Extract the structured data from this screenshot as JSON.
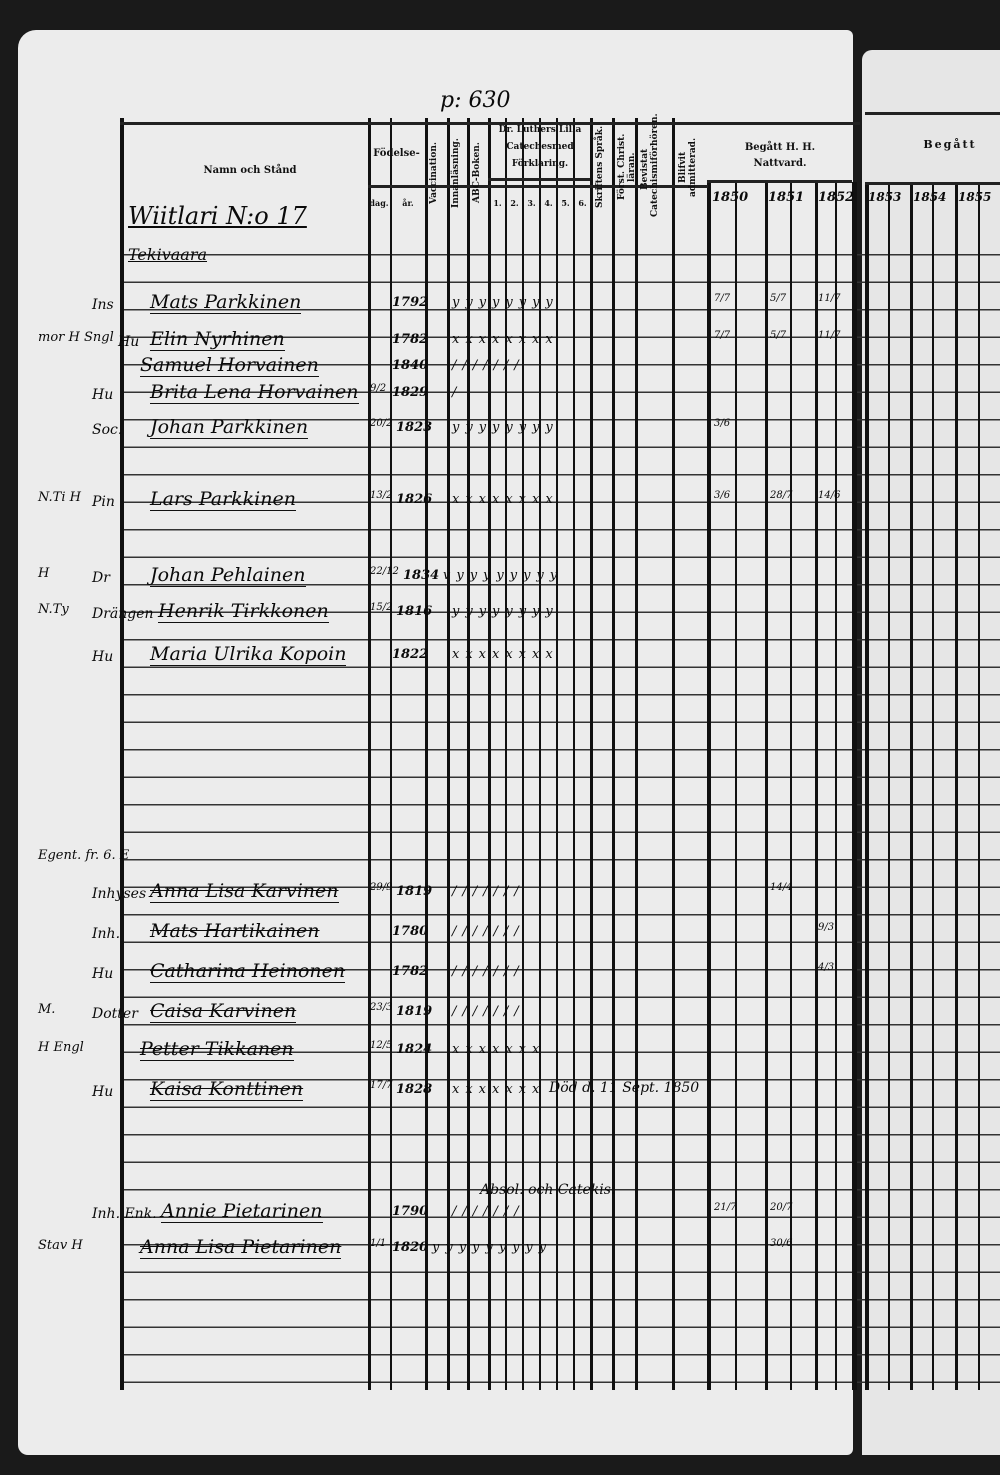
{
  "page_number": "p: 630",
  "header": {
    "name_col": "Namn och Stånd",
    "birth": "Födelse-",
    "birth_day": "dag.",
    "birth_year": "år.",
    "vaccination": "Vaccination.",
    "reading": "Innanläsning.",
    "abc": "ABC-Boken.",
    "catechism": "Dr. Luthers Lilla Catechesmed Förklaring.",
    "catechism_parts": [
      "1.",
      "2.",
      "3.",
      "4.",
      "5.",
      "6."
    ],
    "scripture": "Skriftens Språk.",
    "christ": "Först. Christ. läran.",
    "hearings": "Bevistat Catechismiförhören.",
    "admitted": "Blifvit admitterad.",
    "communion": "Begått H. H. Nattvard.",
    "years": [
      "1850",
      "1851",
      "1852"
    ],
    "right_communion": "Begått",
    "right_years": [
      "1853",
      "1854",
      "1855"
    ]
  },
  "household": {
    "title": "Wiitlari N:o 17",
    "subtitle": "Tekivaara"
  },
  "rows": [
    {
      "margin": "",
      "prefix": "Ins",
      "name": "Mats Parkkinen",
      "day": "",
      "year": "1792",
      "marks": "yyyyyyyy",
      "note": "",
      "c1850": "7/7",
      "c1851": "5/7",
      "c1852": "11/7"
    },
    {
      "margin": "mor H Sngl",
      "prefix": "Hu",
      "name": "Elin Nyrhinen",
      "day": "",
      "year": "1782",
      "marks": "xxxxxxxx",
      "note": "",
      "c1850": "7/7",
      "c1851": "5/7",
      "c1852": "11/7"
    },
    {
      "margin": "",
      "prefix": "",
      "name": "Samuel Horvainen",
      "day": "",
      "year": "1840",
      "marks": "///////",
      "note": "",
      "c1850": "",
      "c1851": "",
      "c1852": ""
    },
    {
      "margin": "",
      "prefix": "Hu",
      "name": "Brita Lena Horvainen",
      "day": "9/2",
      "year": "1829",
      "marks": "/",
      "note": "",
      "c1850": "",
      "c1851": "",
      "c1852": ""
    },
    {
      "margin": "",
      "prefix": "Soc.",
      "name": "Johan Parkkinen",
      "day": "20/2",
      "year": "1823",
      "marks": "yyyyyyyy",
      "note": "",
      "c1850": "3/6",
      "c1851": "",
      "c1852": ""
    },
    {
      "margin": "N.Ti H",
      "prefix": "Pin",
      "name": "Lars Parkkinen",
      "day": "13/2",
      "year": "1826",
      "marks": "xxxxxxxx",
      "note": "",
      "c1850": "3/6",
      "c1851": "28/7",
      "c1852": "14/6"
    },
    {
      "margin": "H",
      "prefix": "Dr",
      "name": "Johan Pehlainen",
      "day": "22/12",
      "year": "1834",
      "marks": "vyyyyyyyy",
      "note": "",
      "c1850": "",
      "c1851": "",
      "c1852": ""
    },
    {
      "margin": "N.Ty",
      "prefix": "Drängen",
      "name": "Henrik Tirkkonen",
      "day": "15/2",
      "year": "1816",
      "marks": "yyyyyyyy",
      "note": "",
      "c1850": "",
      "c1851": "",
      "c1852": ""
    },
    {
      "margin": "",
      "prefix": "Hu",
      "name": "Maria Ulrika Kopoin",
      "day": "",
      "year": "1822",
      "marks": "xxxxxxxx",
      "note": "",
      "c1850": "",
      "c1851": "",
      "c1852": ""
    },
    {
      "margin": "Egent. fr. 6. E",
      "prefix": "",
      "name": "",
      "day": "",
      "year": "",
      "marks": "",
      "note": "",
      "c1850": "",
      "c1851": "",
      "c1852": ""
    },
    {
      "margin": "",
      "prefix": "Inhyses",
      "name": "Anna Lisa Karvinen",
      "day": "29/9",
      "year": "1819",
      "marks": "///////",
      "note": "",
      "c1850": "",
      "c1851": "14/4",
      "c1852": ""
    },
    {
      "margin": "",
      "prefix": "Inh.",
      "name": "Mats Hartikainen",
      "day": "",
      "year": "1780",
      "marks": "///////",
      "note": "",
      "c1850": "",
      "c1851": "",
      "c1852": "9/3"
    },
    {
      "margin": "",
      "prefix": "Hu",
      "name": "Catharina Heinonen",
      "day": "",
      "year": "1782",
      "marks": "///////",
      "note": "",
      "c1850": "",
      "c1851": "",
      "c1852": "4/3"
    },
    {
      "margin": "M.",
      "prefix": "Dotter",
      "name": "Caisa Karvinen",
      "day": "23/3",
      "year": "1819",
      "marks": "///////",
      "note": "",
      "c1850": "",
      "c1851": "",
      "c1852": ""
    },
    {
      "margin": "H Engl",
      "prefix": "",
      "name": "Petter Tikkanen",
      "day": "12/5",
      "year": "1824",
      "marks": "xxxxxxx",
      "note": "",
      "c1850": "",
      "c1851": "",
      "c1852": ""
    },
    {
      "margin": "",
      "prefix": "Hu",
      "name": "Kaisa Konttinen",
      "day": "17/7",
      "year": "1828",
      "marks": "xxxxxxx",
      "note": "Död d. 11 Sept. 1850",
      "c1850": "",
      "c1851": "",
      "c1852": ""
    },
    {
      "margin": "",
      "prefix": "Inh. Enk.",
      "name": "Annie Pietarinen",
      "day": "",
      "year": "1790",
      "marks": "///////",
      "note": "Absol. och Catekis.",
      "c1850": "21/7",
      "c1851": "20/7",
      "c1852": ""
    },
    {
      "margin": "Stav H",
      "prefix": "",
      "name": "Anna Lisa Pietarinen",
      "day": "1/1",
      "year": "1820",
      "marks": "yyyyyyyyy",
      "note": "",
      "c1850": "",
      "c1851": "30/6",
      "c1852": ""
    }
  ]
}
